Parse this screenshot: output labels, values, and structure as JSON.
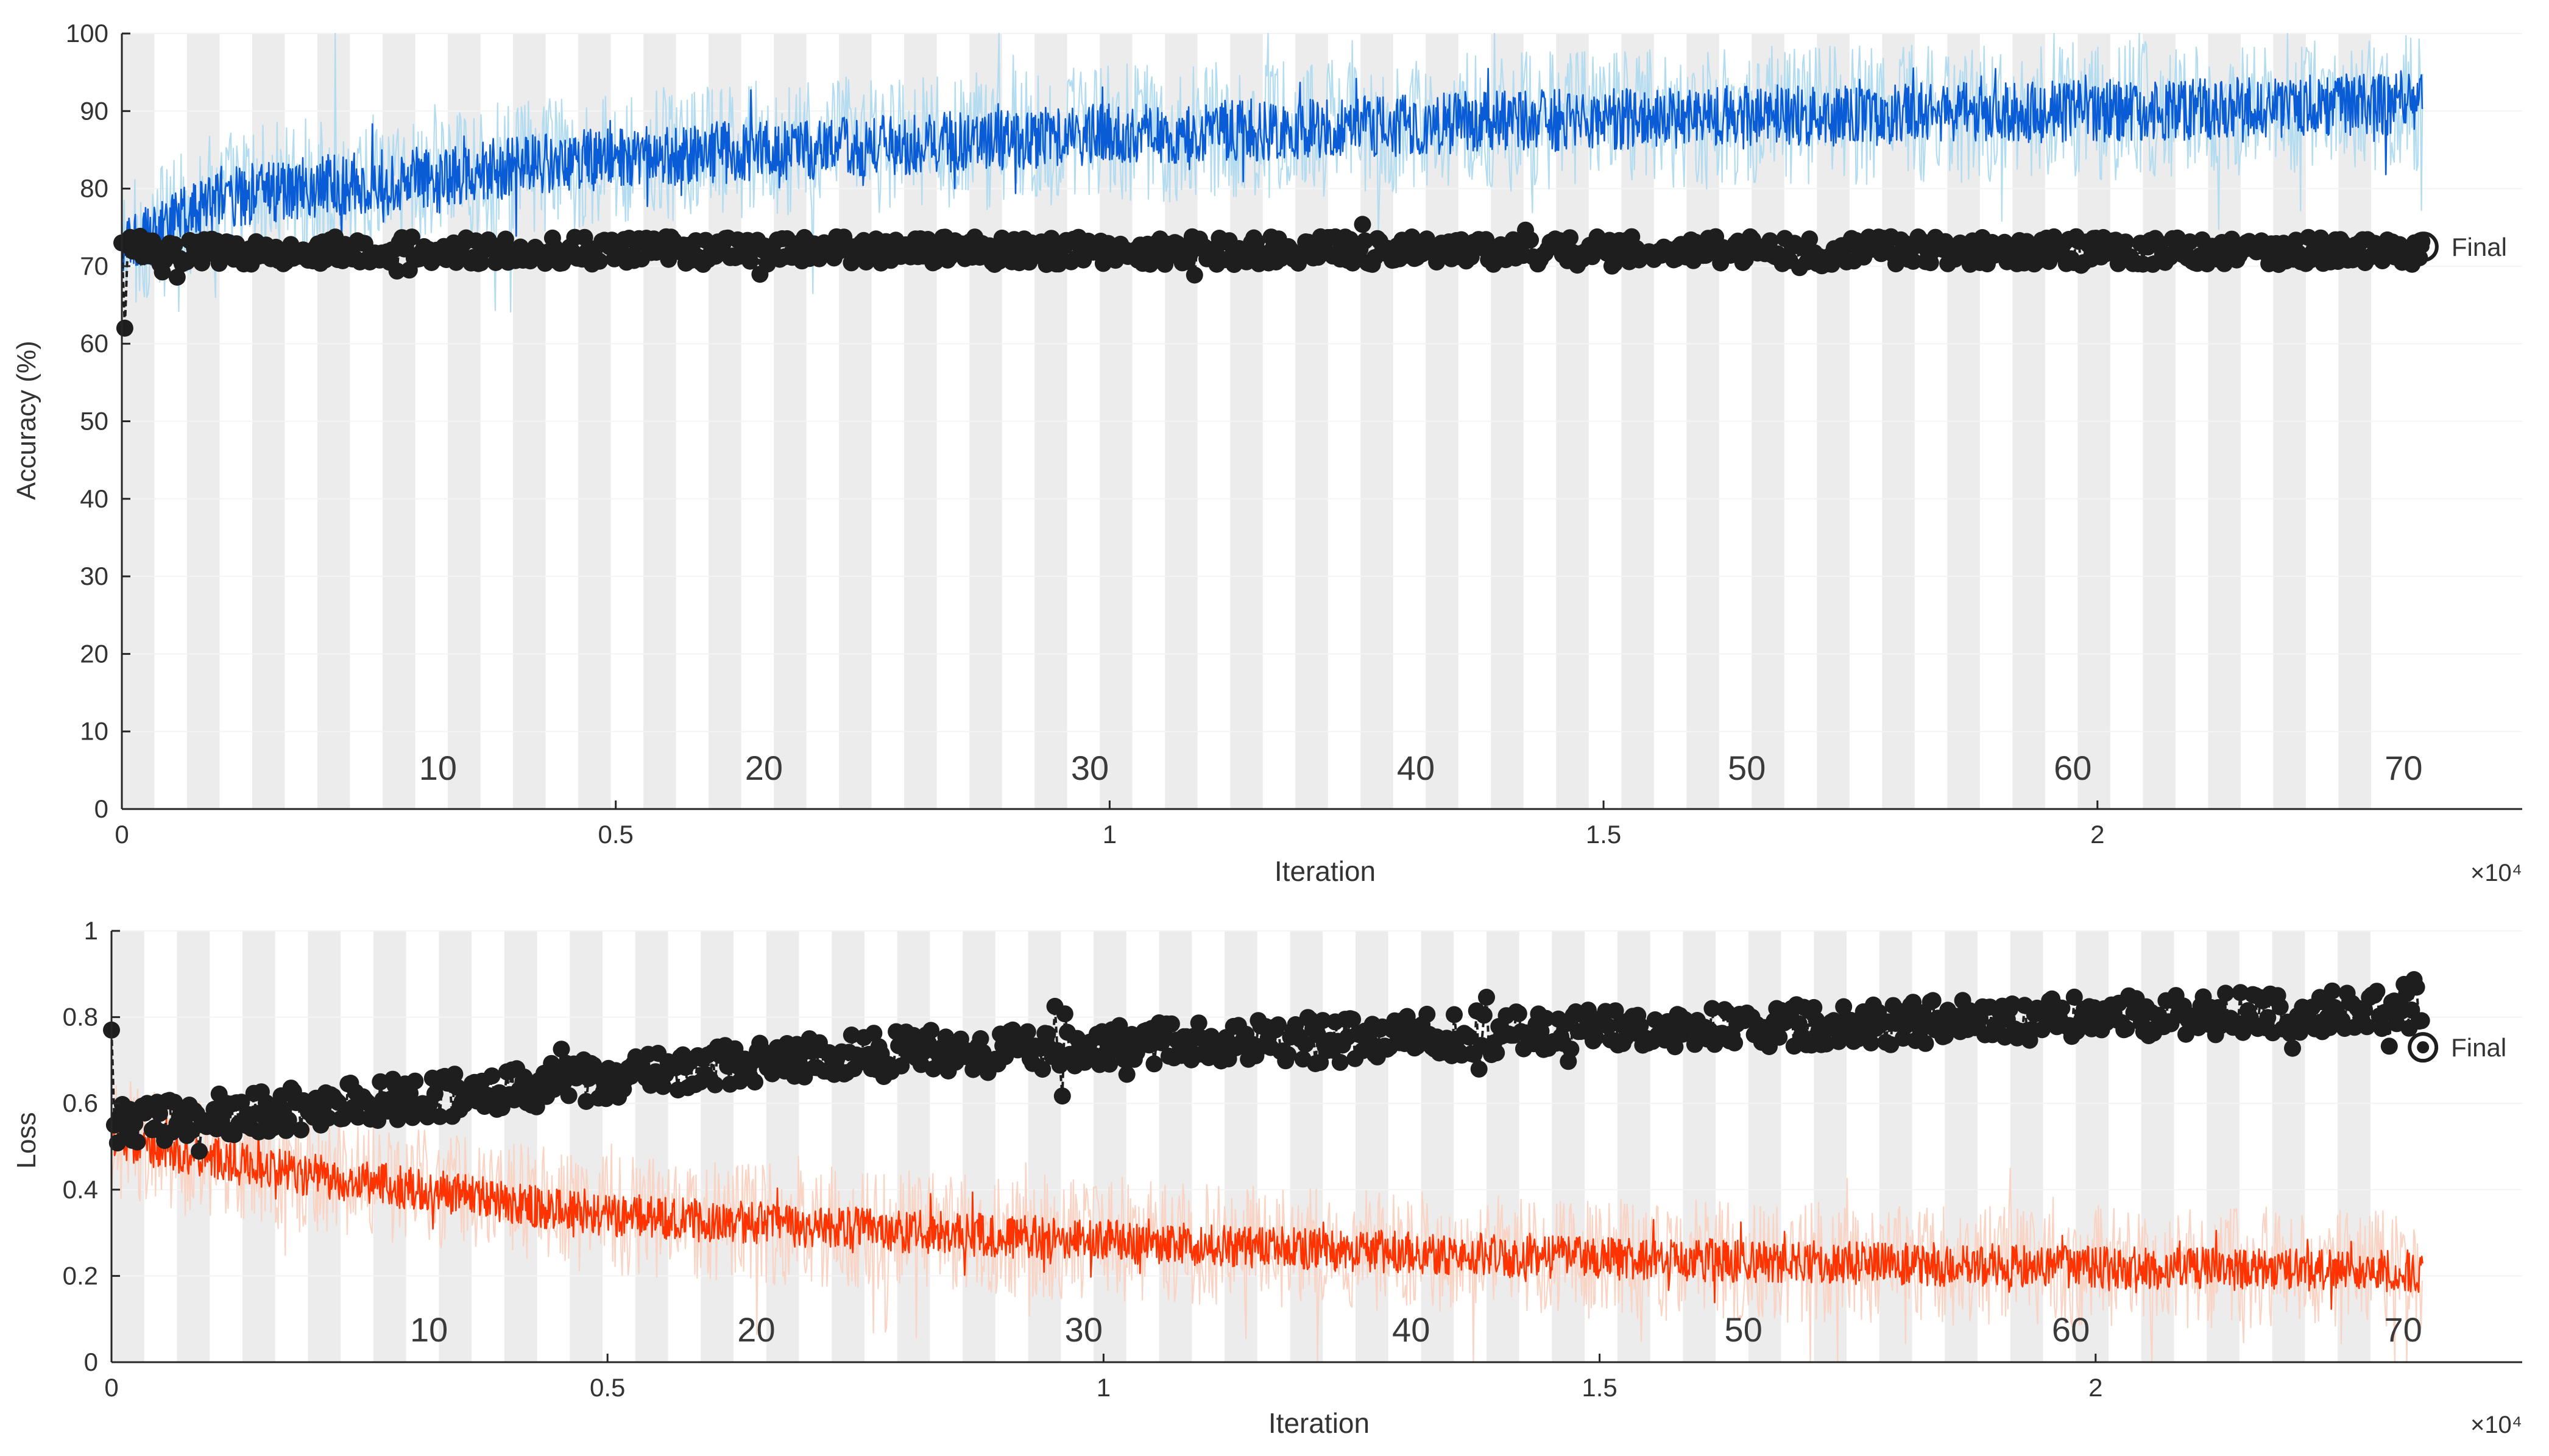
{
  "chart_data": [
    {
      "type": "line",
      "ylabel": "Accuracy (%)",
      "xlabel": "Iteration",
      "x_exponent_label": "×10⁴",
      "xlim": [
        0,
        24300
      ],
      "ylim": [
        0,
        100
      ],
      "x_ticks": [
        0,
        0.5,
        1,
        1.5,
        2
      ],
      "x_tick_labels": [
        "0",
        "0.5",
        "1",
        "1.5",
        "2"
      ],
      "y_ticks": [
        0,
        10,
        20,
        30,
        40,
        50,
        60,
        70,
        80,
        90,
        100
      ],
      "y_tick_labels": [
        "0",
        "10",
        "20",
        "30",
        "40",
        "50",
        "60",
        "70",
        "80",
        "90",
        "100"
      ],
      "epochs": {
        "labels": [
          "10",
          "20",
          "30",
          "40",
          "50",
          "60",
          "70"
        ],
        "label_iterations": [
          3200,
          6500,
          9800,
          13100,
          16450,
          19750,
          23100
        ],
        "band_count": 70,
        "iterations_per_epoch": 330
      },
      "annotation": "Final",
      "annotation_point": [
        23300,
        72.5
      ],
      "series": [
        {
          "role": "training-raw",
          "color": "#b3dcf0",
          "x_end": 23300,
          "trend": [
            [
              0,
              72
            ],
            [
              1000,
              79
            ],
            [
              5000,
              84
            ],
            [
              10000,
              87
            ],
            [
              15000,
              89
            ],
            [
              20000,
              90
            ],
            [
              23300,
              91
            ]
          ],
          "spread": 9
        },
        {
          "role": "training-smoothed",
          "color": "#0a5bd6",
          "x_end": 23300,
          "trend": [
            [
              0,
              72
            ],
            [
              1000,
              79
            ],
            [
              5000,
              84
            ],
            [
              10000,
              87
            ],
            [
              15000,
              89
            ],
            [
              20000,
              90
            ],
            [
              23300,
              91
            ]
          ],
          "spread": 4
        },
        {
          "role": "validation",
          "color": "#1e1e1e",
          "x_end": 23300,
          "every": 25,
          "points_start": [
            [
              0,
              73
            ],
            [
              30,
              62
            ]
          ],
          "mean": 72,
          "spread": 1.8
        }
      ]
    },
    {
      "type": "line",
      "ylabel": "Loss",
      "xlabel": "Iteration",
      "x_exponent_label": "×10⁴",
      "xlim": [
        0,
        24300
      ],
      "ylim": [
        0,
        1
      ],
      "x_ticks": [
        0,
        0.5,
        1,
        1.5,
        2
      ],
      "x_tick_labels": [
        "0",
        "0.5",
        "1",
        "1.5",
        "2"
      ],
      "y_ticks": [
        0,
        0.2,
        0.4,
        0.6,
        0.8,
        1
      ],
      "y_tick_labels": [
        "0",
        "0.2",
        "0.4",
        "0.6",
        "0.8",
        "1"
      ],
      "epochs": {
        "labels": [
          "10",
          "20",
          "30",
          "40",
          "50",
          "60",
          "70"
        ],
        "label_iterations": [
          3200,
          6500,
          9800,
          13100,
          16450,
          19750,
          23100
        ],
        "band_count": 70,
        "iterations_per_epoch": 330
      },
      "annotation": "Final",
      "annotation_point": [
        23300,
        0.73
      ],
      "series": [
        {
          "role": "training-raw",
          "color": "#f9d3c4",
          "x_end": 23300,
          "trend": [
            [
              0,
              0.52
            ],
            [
              1500,
              0.45
            ],
            [
              5000,
              0.34
            ],
            [
              10000,
              0.28
            ],
            [
              15000,
              0.24
            ],
            [
              20000,
              0.22
            ],
            [
              23300,
              0.21
            ]
          ],
          "spread": 0.14
        },
        {
          "role": "training-smoothed",
          "color": "#ff3300",
          "x_end": 23300,
          "trend": [
            [
              0,
              0.52
            ],
            [
              1500,
              0.45
            ],
            [
              5000,
              0.34
            ],
            [
              10000,
              0.28
            ],
            [
              15000,
              0.24
            ],
            [
              20000,
              0.22
            ],
            [
              23300,
              0.21
            ]
          ],
          "spread": 0.05
        },
        {
          "role": "validation",
          "color": "#1e1e1e",
          "x_end": 23300,
          "every": 25,
          "points_start": [
            [
              0,
              0.77
            ],
            [
              30,
              0.55
            ]
          ],
          "trend": [
            [
              0,
              0.55
            ],
            [
              3500,
              0.62
            ],
            [
              7000,
              0.71
            ],
            [
              12000,
              0.75
            ],
            [
              17000,
              0.78
            ],
            [
              23300,
              0.82
            ]
          ],
          "spread": 0.05
        }
      ]
    }
  ]
}
